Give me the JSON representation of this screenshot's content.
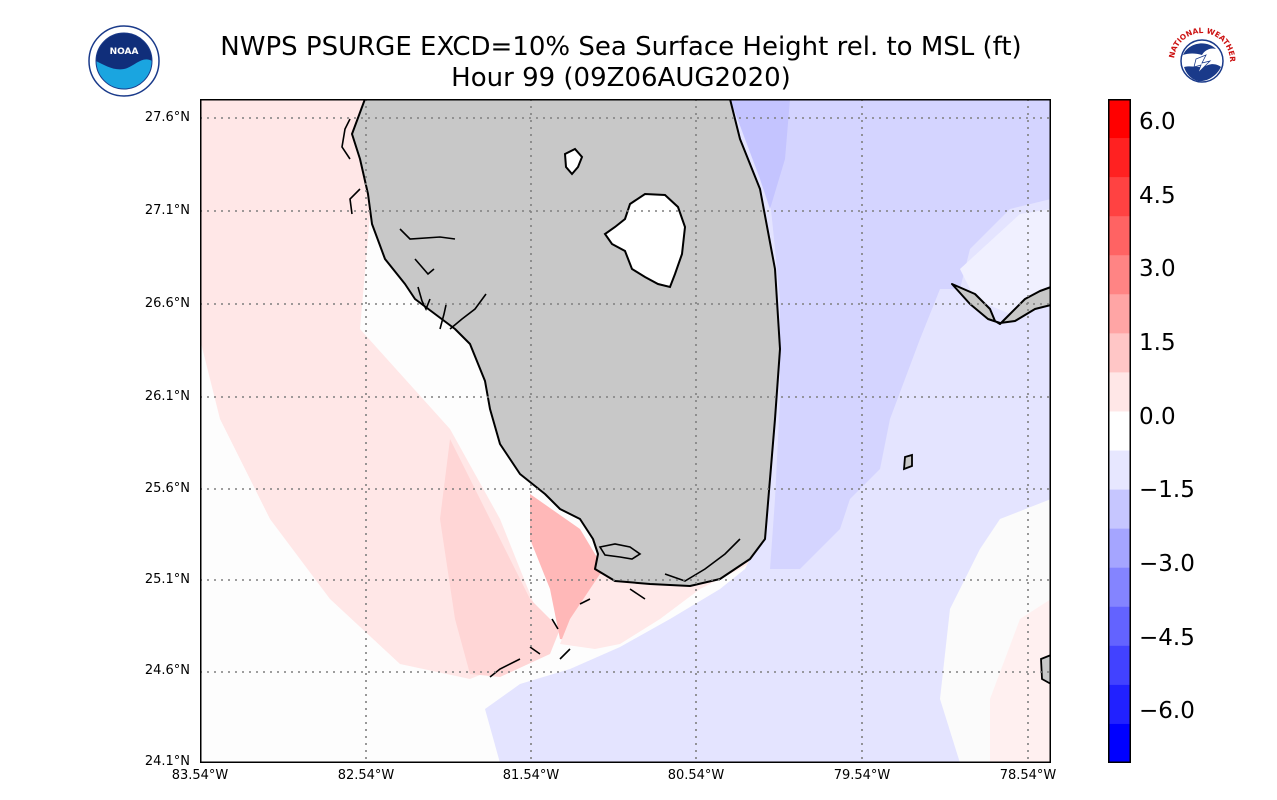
{
  "title": {
    "line1": "NWPS PSURGE EXCD=10% Sea Surface Height rel. to MSL (ft)",
    "line2": "Hour 99 (09Z06AUG2020)"
  },
  "logos": {
    "left": {
      "name": "noaa-logo",
      "text": "NOAA"
    },
    "right": {
      "name": "nws-logo",
      "text": "NATIONAL WEATHER SERVICE"
    }
  },
  "map": {
    "lat_ticks": [
      "27.6°N",
      "27.1°N",
      "26.6°N",
      "26.1°N",
      "25.6°N",
      "25.1°N",
      "24.6°N",
      "24.1°N"
    ],
    "lon_ticks": [
      "83.54°W",
      "82.54°W",
      "81.54°W",
      "80.54°W",
      "79.54°W",
      "78.54°W"
    ],
    "colors": {
      "land": "#c8c8c8",
      "lake": "#ffffff",
      "coast": "#000000",
      "grid": "#7f7f7f"
    }
  },
  "colorbar": {
    "labels": [
      "6.0",
      "4.5",
      "3.0",
      "1.5",
      "0.0",
      "−1.5",
      "−3.0",
      "−4.5",
      "−6.0"
    ],
    "range": [
      -7,
      6.5
    ],
    "bands": [
      "#ff0000",
      "#ff2121",
      "#ff4242",
      "#ff6363",
      "#ff8484",
      "#ffa5a5",
      "#ffc6c6",
      "#ffe7e7",
      "#ffffff",
      "#e7e7ff",
      "#c6c6ff",
      "#a5a5ff",
      "#8484ff",
      "#6363ff",
      "#4242ff",
      "#2121ff",
      "#0000ff"
    ]
  }
}
